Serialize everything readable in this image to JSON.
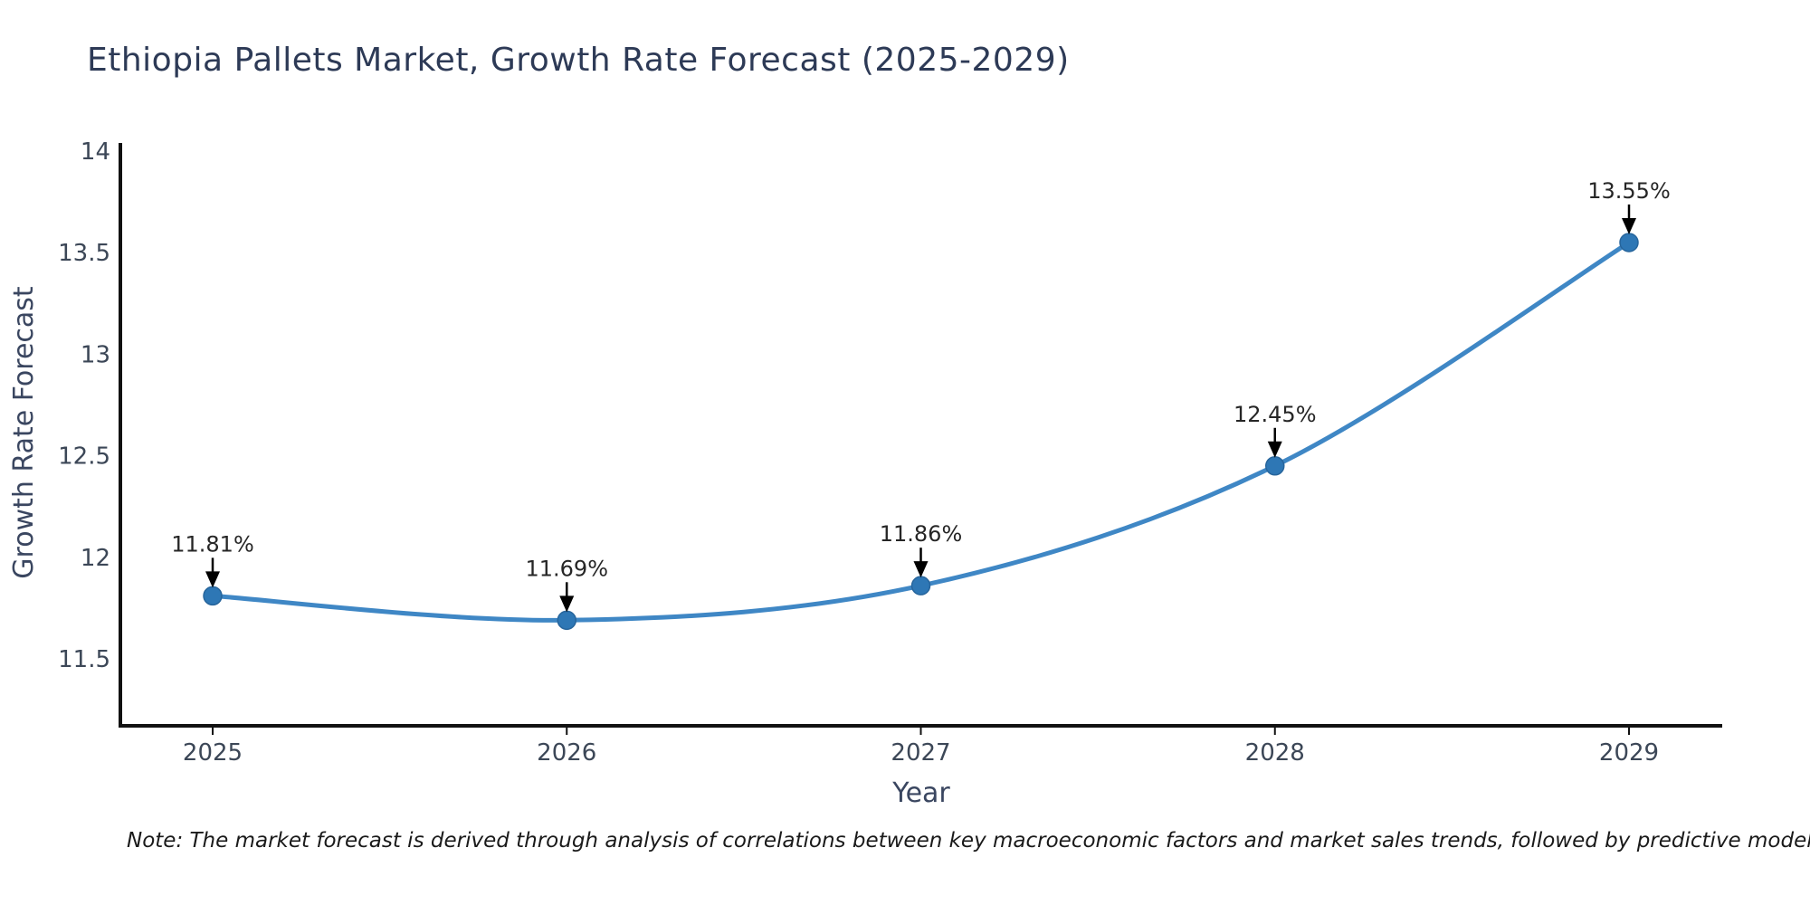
{
  "page": {
    "note": "Note: The market forecast is derived through analysis of correlations between key macroeconomic factors and market sales trends, followed by predictive modeling to project future sales."
  },
  "chart_data": {
    "type": "line",
    "title": "Ethiopia Pallets Market, Growth Rate Forecast (2025-2029)",
    "xlabel": "Year",
    "ylabel": "Growth Rate Forecast",
    "x": [
      2025,
      2026,
      2027,
      2028,
      2029
    ],
    "series": [
      {
        "name": "Growth Rate Forecast",
        "values": [
          11.81,
          11.69,
          11.86,
          12.45,
          13.55
        ],
        "point_labels": [
          "11.81%",
          "11.69%",
          "11.86%",
          "12.45%",
          "13.55%"
        ]
      }
    ],
    "y_ticks": [
      14,
      13.5,
      13,
      12.5,
      12,
      11.5
    ],
    "ylim": [
      11.17,
      14.04
    ],
    "grid": false,
    "legend": "none",
    "line_color": "#3f87c5",
    "marker_color": "#2e77b5",
    "marker_edge_color": "#27659c",
    "axis_color": "#111111",
    "annotation_color": "#000000"
  }
}
